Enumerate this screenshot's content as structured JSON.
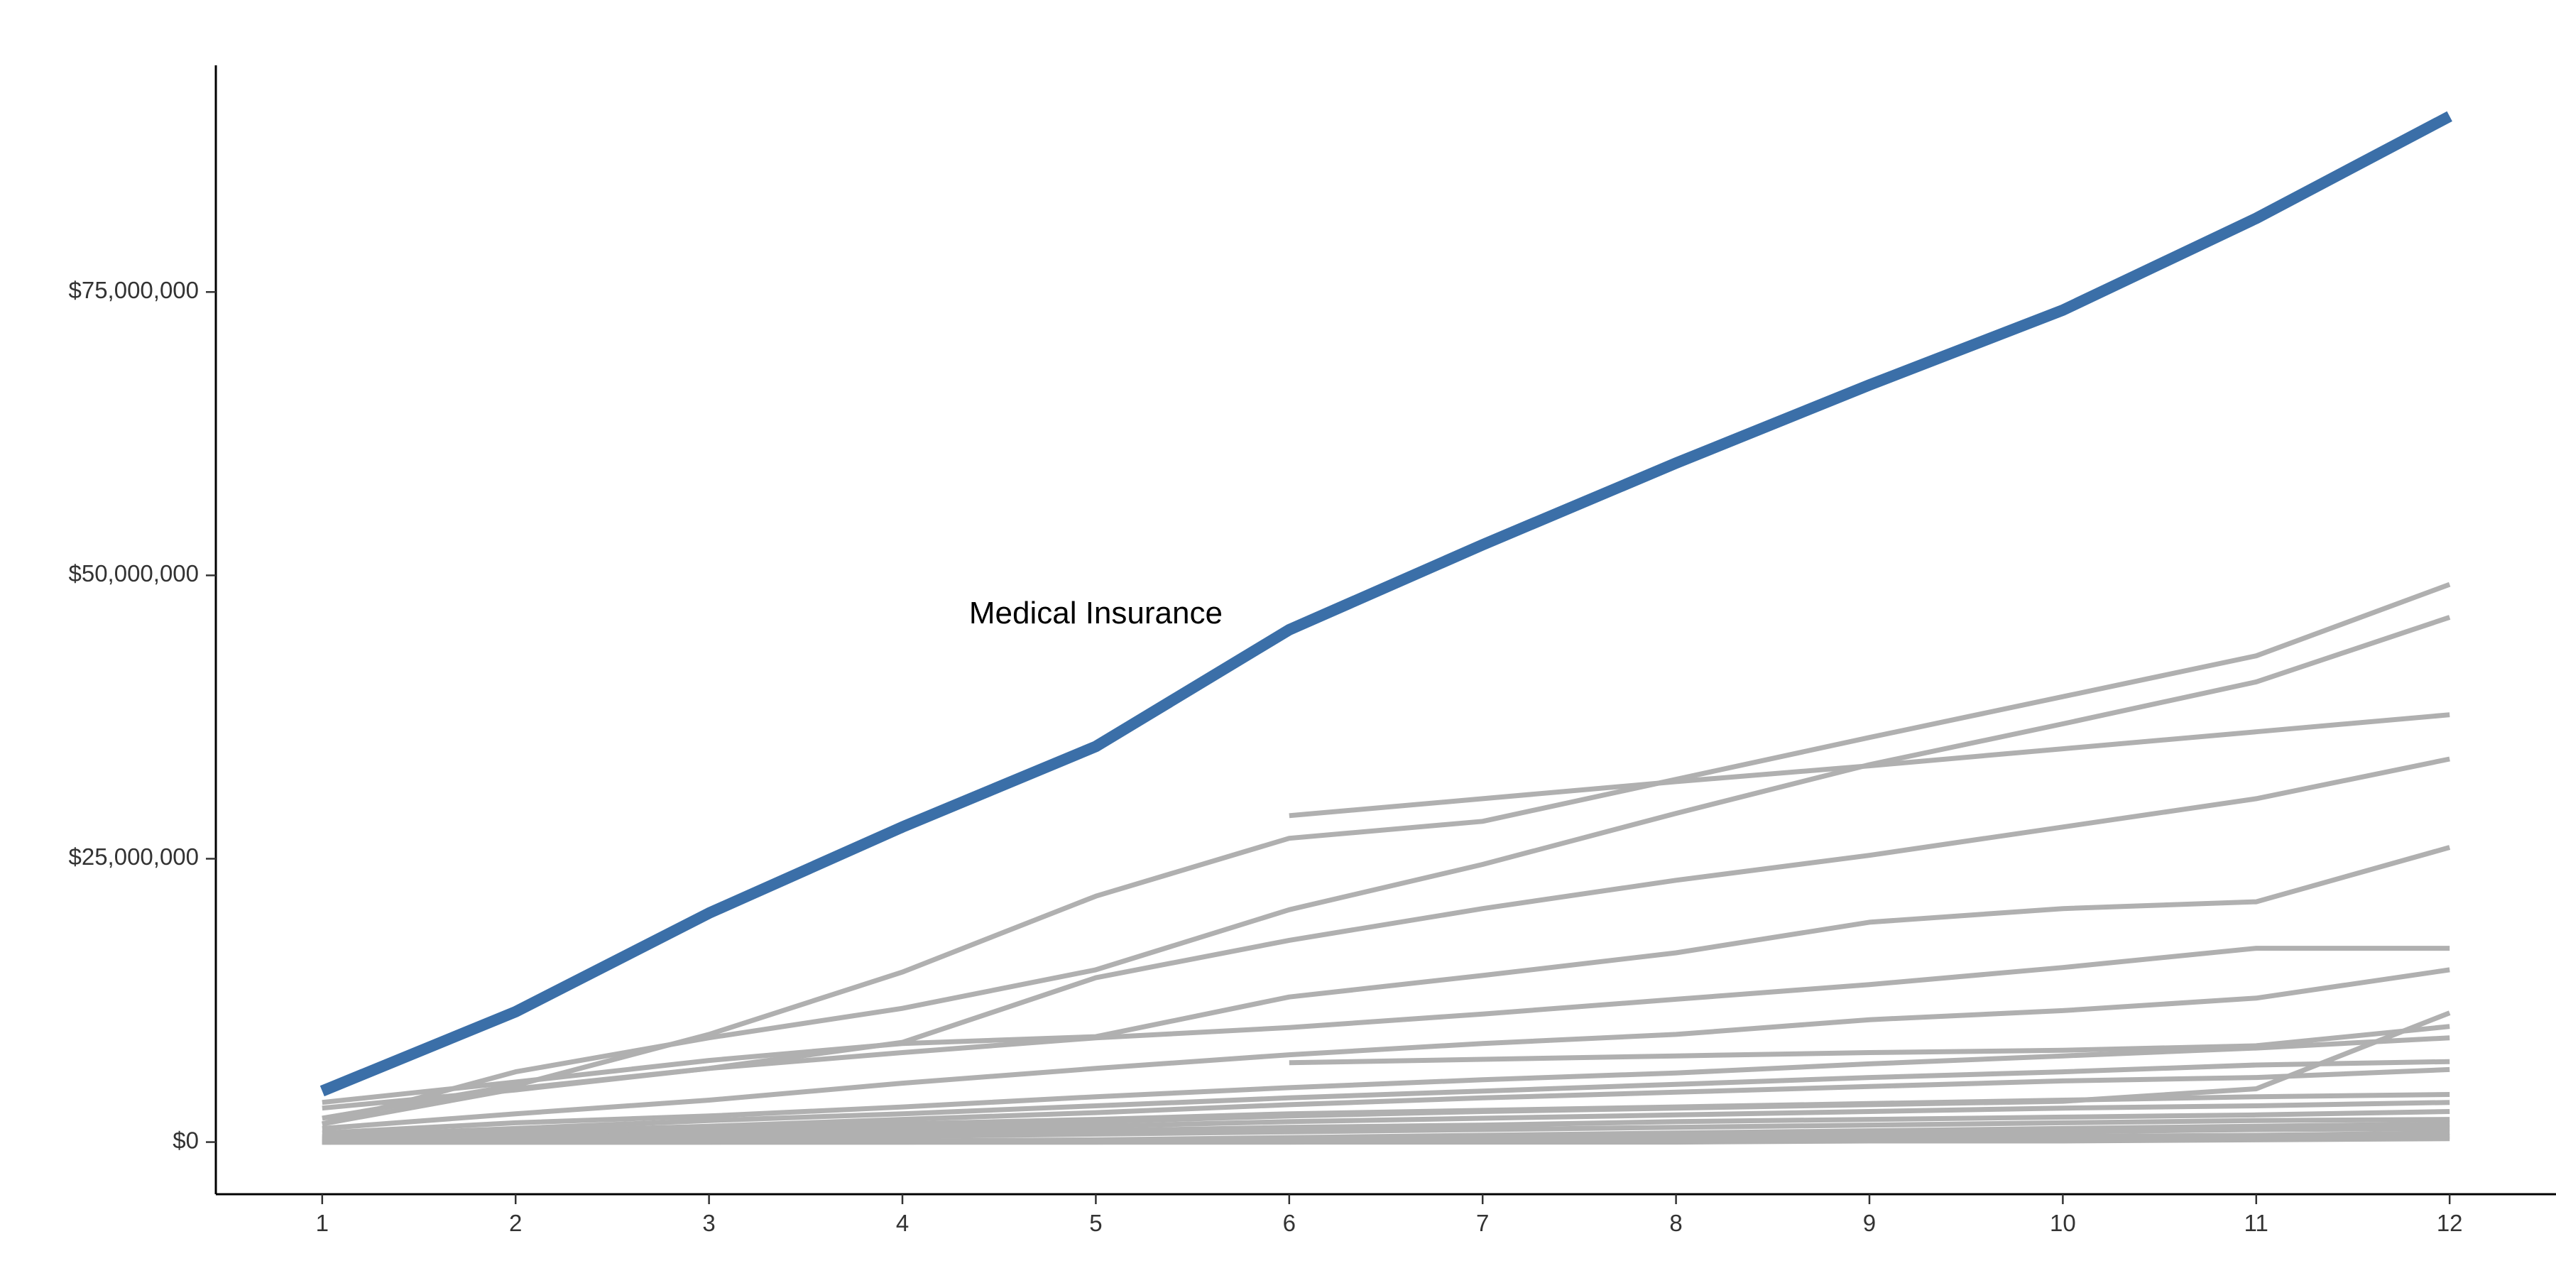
{
  "chart_data": {
    "type": "line",
    "title": "",
    "xlabel": "",
    "ylabel": "",
    "x": [
      1,
      2,
      3,
      4,
      5,
      6,
      7,
      8,
      9,
      10,
      11,
      12
    ],
    "xlim": [
      0.45,
      12.55
    ],
    "ylim": [
      -4600000,
      95000000
    ],
    "y_ticks": [
      0,
      25000000,
      50000000,
      75000000
    ],
    "y_tick_labels": [
      "$0",
      "$25,000,000",
      "$50,000,000",
      "$75,000,000"
    ],
    "x_tick_labels": [
      "1",
      "2",
      "3",
      "4",
      "5",
      "6",
      "7",
      "8",
      "9",
      "10",
      "11",
      "12"
    ],
    "grid": false,
    "legend": "none",
    "highlight_color": "#3b6fa8",
    "background_color": "#b0b0b0",
    "highlight": {
      "name": "Medical Insurance",
      "label_at": [
        5.0,
        46500000
      ],
      "values": [
        4500000,
        11500000,
        20200000,
        27800000,
        34900000,
        45200000,
        52700000,
        59900000,
        66800000,
        73400000,
        81500000,
        90500000
      ]
    },
    "background_series": [
      {
        "values": [
          2100000,
          5000000,
          9500000,
          15000000,
          21700000,
          26800000,
          28300000,
          32000000,
          35700000,
          39300000,
          42900000,
          49200000
        ]
      },
      {
        "values": [
          1600000,
          4700000,
          6500000,
          8800000,
          14500000,
          17800000,
          20600000,
          23100000,
          25300000,
          27800000,
          30300000,
          33800000
        ]
      },
      {
        "values": [
          1600000,
          6200000,
          9200000,
          11800000,
          15200000,
          20500000,
          24500000,
          29000000,
          33300000,
          36900000,
          40600000,
          46300000
        ]
      },
      {
        "x": [
          6,
          7,
          8,
          9,
          10,
          11,
          12
        ],
        "values": [
          28800000,
          30300000,
          31800000,
          33200000,
          34700000,
          36200000,
          37700000
        ]
      },
      {
        "values": [
          3500000,
          5300000,
          7200000,
          8700000,
          9300000,
          12800000,
          14700000,
          16700000,
          19400000,
          20600000,
          21200000,
          26000000
        ]
      },
      {
        "values": [
          3000000,
          4600000,
          6500000,
          7900000,
          9200000,
          10100000,
          11300000,
          12600000,
          13900000,
          15400000,
          17100000,
          17100000
        ]
      },
      {
        "values": [
          1200000,
          2500000,
          3700000,
          5200000,
          6500000,
          7700000,
          8700000,
          9500000,
          10800000,
          11600000,
          12700000,
          15200000
        ]
      },
      {
        "x": [
          6,
          7,
          8,
          9,
          10,
          11,
          12
        ],
        "values": [
          7000000,
          7300000,
          7600000,
          7900000,
          8100000,
          8500000,
          10200000
        ]
      },
      {
        "values": [
          800000,
          1700000,
          2300000,
          3100000,
          4000000,
          4800000,
          5500000,
          6100000,
          6900000,
          7600000,
          8300000,
          9200000
        ]
      },
      {
        "values": [
          500000,
          1200000,
          1900000,
          2500000,
          3200000,
          3900000,
          4500000,
          5100000,
          5700000,
          6200000,
          6800000,
          7100000
        ]
      },
      {
        "values": [
          300000,
          900000,
          1400000,
          2000000,
          2600000,
          3300000,
          3900000,
          4400000,
          4900000,
          5400000,
          5700000,
          6400000
        ]
      },
      {
        "values": [
          200000,
          600000,
          1000000,
          1300000,
          1800000,
          2300000,
          2700000,
          3000000,
          3300000,
          3600000,
          4700000,
          11400000
        ]
      },
      {
        "values": [
          400000,
          800000,
          1200000,
          1600000,
          2000000,
          2500000,
          2800000,
          3100000,
          3400000,
          3700000,
          4000000,
          4200000
        ]
      },
      {
        "values": [
          100000,
          400000,
          700000,
          1000000,
          1400000,
          1800000,
          2100000,
          2400000,
          2700000,
          3000000,
          3200000,
          3500000
        ]
      },
      {
        "values": [
          100000,
          200000,
          500000,
          700000,
          1000000,
          1300000,
          1500000,
          1800000,
          2000000,
          2200000,
          2400000,
          2700000
        ]
      },
      {
        "values": [
          0,
          100000,
          300000,
          500000,
          700000,
          900000,
          1100000,
          1300000,
          1500000,
          1700000,
          1900000,
          2000000
        ]
      },
      {
        "values": [
          0,
          0,
          0,
          100000,
          200000,
          400000,
          600000,
          800000,
          1000000,
          1200000,
          1400000,
          1600000
        ]
      },
      {
        "values": [
          0,
          0,
          0,
          0,
          100000,
          200000,
          300000,
          500000,
          700000,
          900000,
          1100000,
          1200000
        ]
      },
      {
        "values": [
          0,
          0,
          0,
          0,
          0,
          100000,
          200000,
          300000,
          400000,
          500000,
          600000,
          800000
        ]
      },
      {
        "values": [
          0,
          0,
          0,
          0,
          0,
          0,
          100000,
          100000,
          200000,
          300000,
          400000,
          500000
        ]
      },
      {
        "values": [
          0,
          0,
          0,
          0,
          0,
          0,
          0,
          0,
          100000,
          100000,
          200000,
          300000
        ]
      }
    ]
  }
}
